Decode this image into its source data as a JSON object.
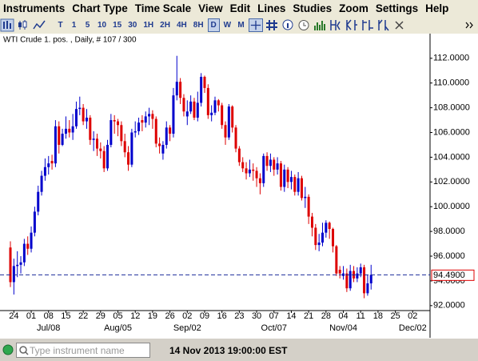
{
  "menu": [
    "Instruments",
    "Chart Type",
    "Time Scale",
    "View",
    "Edit",
    "Lines",
    "Studies",
    "Zoom",
    "Settings",
    "Help"
  ],
  "toolbar": {
    "timeframes": [
      {
        "label": "T"
      },
      {
        "label": "1"
      },
      {
        "label": "5"
      },
      {
        "label": "10"
      },
      {
        "label": "15"
      },
      {
        "label": "30"
      },
      {
        "label": "1H"
      },
      {
        "label": "2H"
      },
      {
        "label": "4H"
      },
      {
        "label": "8H"
      },
      {
        "label": "D",
        "selected": true
      },
      {
        "label": "W"
      },
      {
        "label": "M"
      }
    ]
  },
  "chart_data": {
    "type": "candlestick",
    "title": "WTI Crude 1. pos. , Daily, # 107 / 300",
    "up_color": "#0000cc",
    "down_color": "#dd0000",
    "open": [
      96.7,
      93.9,
      95.2,
      95.3,
      95.5,
      97.0,
      96.6,
      97.9,
      99.6,
      101.2,
      102.5,
      103.2,
      103.7,
      103.5,
      106.5,
      105.0,
      105.9,
      106.3,
      106.0,
      106.5,
      107.9,
      108.0,
      106.9,
      107.2,
      105.4,
      105.5,
      104.7,
      104.5,
      103.1,
      105.0,
      107.0,
      106.9,
      106.6,
      105.3,
      104.4,
      103.4,
      106.0,
      106.1,
      107.0,
      106.8,
      107.3,
      107.5,
      107.1,
      105.1,
      104.3,
      105.0,
      106.4,
      105.9,
      109.0,
      110.1,
      108.8,
      107.3,
      107.7,
      108.5,
      107.2,
      108.4,
      110.5,
      109.6,
      107.4,
      107.6,
      108.6,
      108.2,
      106.6,
      105.6,
      108.1,
      106.4,
      104.7,
      103.6,
      103.1,
      102.7,
      103.0,
      102.9,
      102.3,
      101.9,
      104.1,
      103.3,
      103.8,
      103.0,
      103.5,
      101.6,
      103.0,
      102.0,
      102.4,
      101.2,
      102.3,
      100.7,
      100.8,
      99.2,
      98.3,
      96.9,
      97.1,
      97.9,
      98.7,
      98.2,
      96.8,
      94.9,
      94.4,
      94.6,
      93.4,
      94.8,
      94.2,
      94.6,
      95.1,
      93.0,
      93.8
    ],
    "high": [
      97.2,
      95.8,
      96.4,
      96.0,
      97.4,
      97.6,
      98.4,
      100.0,
      101.7,
      102.9,
      103.9,
      104.1,
      104.2,
      107.0,
      106.9,
      106.3,
      107.3,
      107.0,
      107.5,
      108.5,
      108.9,
      108.3,
      107.9,
      107.4,
      106.1,
      105.9,
      105.2,
      104.9,
      105.4,
      107.5,
      107.4,
      107.1,
      106.9,
      105.9,
      104.9,
      106.3,
      106.9,
      107.2,
      107.4,
      107.7,
      108.0,
      107.8,
      107.3,
      105.6,
      105.3,
      106.9,
      106.6,
      109.6,
      112.2,
      110.4,
      109.1,
      108.6,
      109.0,
      108.8,
      109.3,
      110.8,
      110.6,
      109.9,
      108.2,
      108.9,
      108.7,
      108.4,
      106.9,
      108.3,
      108.2,
      106.6,
      104.9,
      104.0,
      103.6,
      103.8,
      103.5,
      103.2,
      102.7,
      104.3,
      104.4,
      104.3,
      104.0,
      104.0,
      103.7,
      103.4,
      103.2,
      102.9,
      102.6,
      102.8,
      102.5,
      101.6,
      101.0,
      99.5,
      98.6,
      97.8,
      98.7,
      98.9,
      98.8,
      98.3,
      96.9,
      95.2,
      95.2,
      95.0,
      95.3,
      95.2,
      95.1,
      95.4,
      95.3,
      94.5,
      95.3
    ],
    "low": [
      93.5,
      92.9,
      94.3,
      94.6,
      95.2,
      96.1,
      96.3,
      97.6,
      99.3,
      100.9,
      102.1,
      102.6,
      103.0,
      103.2,
      104.3,
      104.9,
      105.5,
      105.6,
      105.4,
      106.3,
      107.4,
      106.6,
      106.3,
      105.0,
      104.5,
      104.1,
      103.9,
      102.8,
      102.9,
      104.8,
      105.9,
      105.7,
      104.9,
      104.0,
      102.9,
      103.2,
      105.6,
      105.8,
      106.1,
      106.4,
      106.6,
      106.3,
      104.8,
      104.3,
      103.8,
      104.7,
      105.3,
      105.6,
      108.6,
      108.3,
      107.3,
      106.6,
      107.5,
      107.0,
      106.9,
      108.1,
      109.2,
      107.1,
      106.9,
      107.4,
      107.7,
      106.3,
      105.0,
      105.4,
      106.0,
      104.4,
      103.3,
      102.8,
      102.2,
      102.4,
      102.1,
      101.6,
      101.0,
      101.6,
      102.9,
      102.8,
      102.5,
      102.6,
      101.3,
      101.2,
      101.5,
      101.4,
      100.9,
      100.9,
      100.5,
      99.9,
      98.6,
      97.6,
      96.5,
      96.4,
      96.8,
      97.5,
      97.4,
      96.3,
      94.4,
      94.2,
      94.1,
      93.1,
      93.2,
      93.9,
      93.9,
      94.3,
      92.6,
      92.8,
      93.3
    ],
    "close": [
      93.9,
      95.2,
      95.3,
      95.5,
      97.0,
      96.6,
      97.9,
      99.6,
      101.2,
      102.5,
      103.2,
      103.5,
      103.5,
      106.5,
      105.0,
      105.9,
      106.3,
      106.0,
      106.5,
      107.9,
      108.0,
      106.9,
      107.2,
      105.4,
      105.5,
      104.7,
      104.5,
      103.1,
      105.0,
      107.0,
      106.9,
      106.6,
      105.3,
      104.4,
      103.4,
      106.0,
      106.1,
      106.8,
      106.8,
      107.3,
      107.5,
      107.1,
      105.1,
      104.9,
      105.0,
      106.4,
      105.9,
      109.0,
      110.1,
      108.8,
      107.7,
      107.7,
      108.5,
      107.2,
      108.4,
      110.5,
      109.6,
      107.4,
      107.6,
      108.6,
      108.2,
      106.6,
      105.6,
      108.1,
      106.4,
      104.7,
      103.6,
      103.1,
      102.7,
      103.0,
      102.9,
      102.3,
      101.9,
      104.1,
      103.3,
      103.8,
      103.0,
      103.5,
      101.6,
      103.0,
      102.0,
      102.4,
      101.2,
      102.3,
      100.7,
      100.8,
      99.2,
      98.3,
      96.9,
      97.1,
      97.9,
      98.7,
      98.2,
      96.8,
      94.6,
      94.6,
      94.6,
      93.4,
      94.8,
      94.2,
      94.6,
      95.1,
      93.0,
      93.8,
      94.49
    ],
    "xlim": [
      -3,
      121
    ],
    "xticks": [
      {
        "value": 1,
        "label": "24"
      },
      {
        "value": 6,
        "label": "01"
      },
      {
        "value": 11,
        "label": "08"
      },
      {
        "value": 16,
        "label": "15"
      },
      {
        "value": 21,
        "label": "22"
      },
      {
        "value": 26,
        "label": "29"
      },
      {
        "value": 31,
        "label": "05"
      },
      {
        "value": 36,
        "label": "12"
      },
      {
        "value": 41,
        "label": "19"
      },
      {
        "value": 46,
        "label": "26"
      },
      {
        "value": 51,
        "label": "02"
      },
      {
        "value": 56,
        "label": "09"
      },
      {
        "value": 61,
        "label": "16"
      },
      {
        "value": 66,
        "label": "23"
      },
      {
        "value": 71,
        "label": "30"
      },
      {
        "value": 76,
        "label": "07"
      },
      {
        "value": 81,
        "label": "14"
      },
      {
        "value": 86,
        "label": "21"
      },
      {
        "value": 91,
        "label": "28"
      },
      {
        "value": 96,
        "label": "04"
      },
      {
        "value": 101,
        "label": "11"
      },
      {
        "value": 106,
        "label": "18"
      },
      {
        "value": 111,
        "label": "25"
      },
      {
        "value": 116,
        "label": "02"
      }
    ],
    "period_ticks": [
      {
        "value": 11,
        "label": "Jul/08"
      },
      {
        "value": 31,
        "label": "Aug/05"
      },
      {
        "value": 51,
        "label": "Sep/02"
      },
      {
        "value": 76,
        "label": "Oct/07"
      },
      {
        "value": 96,
        "label": "Nov/04"
      },
      {
        "value": 116,
        "label": "Dec/02"
      }
    ],
    "ylim": [
      91.6,
      112.7
    ],
    "yticks": [
      {
        "value": 92,
        "label": "92.0000"
      },
      {
        "value": 94,
        "label": "94.0000"
      },
      {
        "value": 96,
        "label": "96.0000"
      },
      {
        "value": 98,
        "label": "98.0000"
      },
      {
        "value": 100,
        "label": "100.0000"
      },
      {
        "value": 102,
        "label": "102.0000"
      },
      {
        "value": 104,
        "label": "104.0000"
      },
      {
        "value": 106,
        "label": "106.0000"
      },
      {
        "value": 108,
        "label": "108.0000"
      },
      {
        "value": 110,
        "label": "110.0000"
      },
      {
        "value": 112,
        "label": "112.0000"
      }
    ],
    "last_price": {
      "value": 94.49,
      "label": "94.4900"
    }
  },
  "status_bar": {
    "search_placeholder": "Type instrument name",
    "datetime": "14 Nov 2013 19:00:00 EST"
  }
}
